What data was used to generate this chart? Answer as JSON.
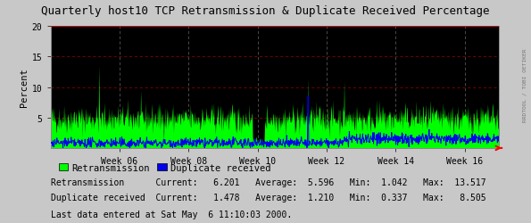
{
  "title": "Quarterly host10 TCP Retransmission & Duplicate Received Percentage",
  "ylabel": "Percent",
  "bg_color": "#c8c8c8",
  "plot_bg_color": "#000000",
  "grid_color_h": "#800000",
  "grid_color_v": "#555555",
  "ylim": [
    0,
    20
  ],
  "yticks": [
    5,
    10,
    15,
    20
  ],
  "yticklabels": [
    "5",
    "10",
    "15",
    "20"
  ],
  "week_labels": [
    "Week 06",
    "Week 08",
    "Week 10",
    "Week 12",
    "Week 14",
    "Week 16"
  ],
  "retrans_color": "#00ff00",
  "dup_color": "#0000ee",
  "legend_retrans": "Retransmission",
  "legend_dup": "Duplicate received",
  "stats_retrans_label": "Retransmission",
  "stats_dup_label": "Duplicate received",
  "stats_retrans": {
    "current": "6.201",
    "average": "5.596",
    "min": "1.042",
    "max": "13.517"
  },
  "stats_dup": {
    "current": "1.478",
    "average": "1.210",
    "min": "0.337",
    "max": "8.505"
  },
  "last_data": "Last data entered at Sat May  6 11:10:03 2000.",
  "watermark": "RRDTOOL / TOBI OETIKER",
  "arrow_color": "#ff0000",
  "top_line_color": "#cc0000",
  "border_color": "#888888"
}
